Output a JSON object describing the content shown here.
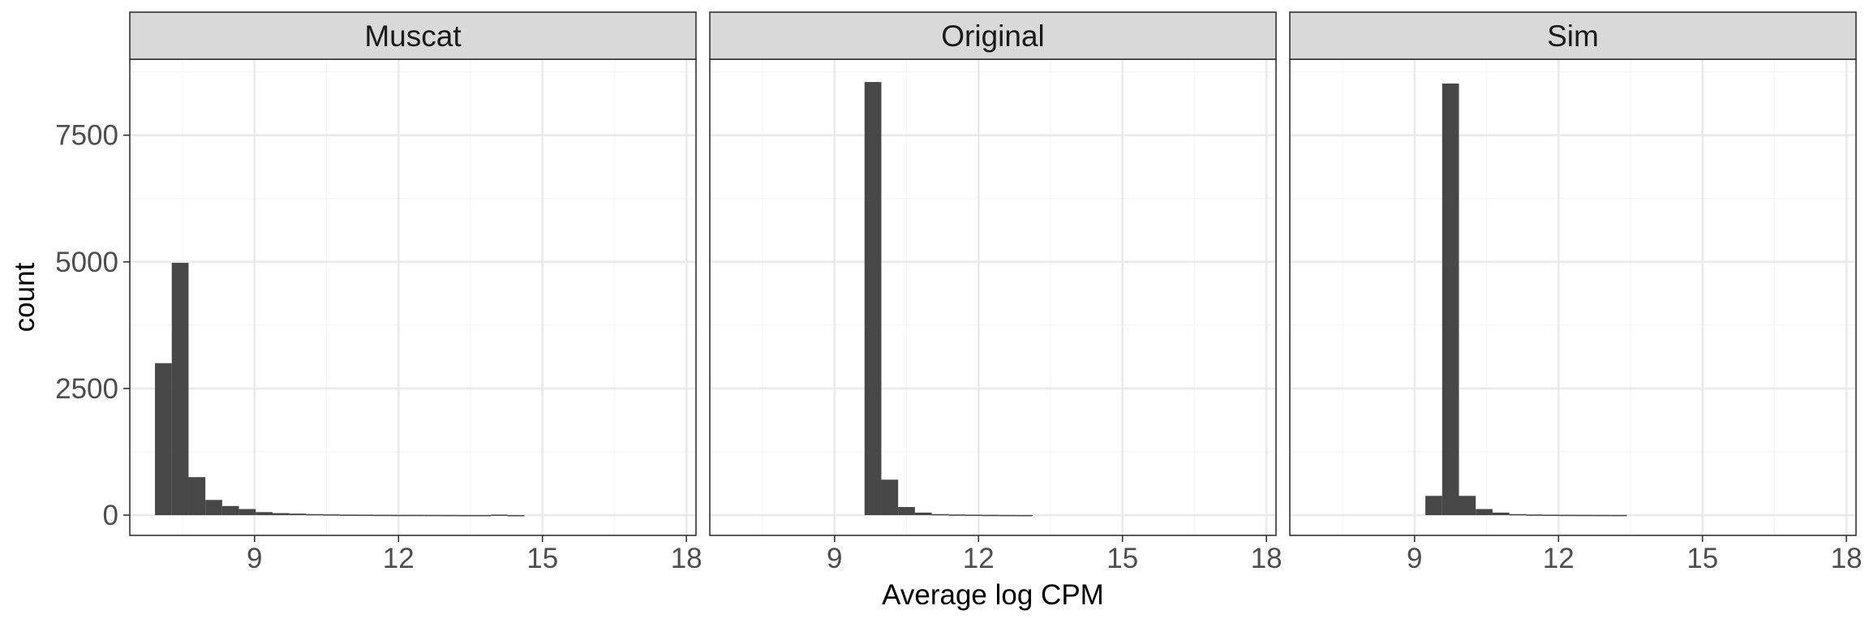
{
  "chart_data": {
    "type": "bar",
    "layout": "facets",
    "xlabel": "Average log CPM",
    "ylabel": "count",
    "xlim": [
      6.4,
      18.2
    ],
    "ylim": [
      -400,
      9000
    ],
    "x_ticks": [
      9,
      12,
      15,
      18
    ],
    "x_tick_labels": [
      "9",
      "12",
      "15",
      "18"
    ],
    "y_ticks": [
      0,
      2500,
      5000,
      7500
    ],
    "y_tick_labels": [
      "0",
      "2500",
      "5000",
      "7500"
    ],
    "grid": true,
    "bin_width": 0.35,
    "facets": [
      {
        "name": "Muscat",
        "bins": [
          {
            "x": 7.1,
            "count": 3000
          },
          {
            "x": 7.45,
            "count": 4980
          },
          {
            "x": 7.8,
            "count": 750
          },
          {
            "x": 8.15,
            "count": 300
          },
          {
            "x": 8.5,
            "count": 180
          },
          {
            "x": 8.85,
            "count": 120
          },
          {
            "x": 9.2,
            "count": 60
          },
          {
            "x": 9.55,
            "count": 40
          },
          {
            "x": 9.9,
            "count": 30
          },
          {
            "x": 10.25,
            "count": 20
          },
          {
            "x": 10.6,
            "count": 15
          },
          {
            "x": 10.95,
            "count": 10
          },
          {
            "x": 11.3,
            "count": 8
          },
          {
            "x": 11.65,
            "count": 6
          },
          {
            "x": 12.0,
            "count": 5
          },
          {
            "x": 12.35,
            "count": 5
          },
          {
            "x": 12.7,
            "count": 4
          },
          {
            "x": 13.05,
            "count": 3
          },
          {
            "x": 13.4,
            "count": 2
          },
          {
            "x": 13.75,
            "count": 2
          },
          {
            "x": 14.1,
            "count": 10
          },
          {
            "x": 14.45,
            "count": 1
          }
        ]
      },
      {
        "name": "Original",
        "bins": [
          {
            "x": 9.8,
            "count": 8550
          },
          {
            "x": 10.15,
            "count": 700
          },
          {
            "x": 10.5,
            "count": 160
          },
          {
            "x": 10.85,
            "count": 50
          },
          {
            "x": 11.2,
            "count": 20
          },
          {
            "x": 11.55,
            "count": 12
          },
          {
            "x": 11.9,
            "count": 8
          },
          {
            "x": 12.25,
            "count": 5
          },
          {
            "x": 12.6,
            "count": 3
          },
          {
            "x": 12.95,
            "count": 2
          }
        ]
      },
      {
        "name": "Sim",
        "bins": [
          {
            "x": 9.4,
            "count": 380
          },
          {
            "x": 9.75,
            "count": 8520
          },
          {
            "x": 10.1,
            "count": 380
          },
          {
            "x": 10.45,
            "count": 120
          },
          {
            "x": 10.8,
            "count": 50
          },
          {
            "x": 11.15,
            "count": 20
          },
          {
            "x": 11.5,
            "count": 12
          },
          {
            "x": 11.85,
            "count": 8
          },
          {
            "x": 12.2,
            "count": 6
          },
          {
            "x": 12.55,
            "count": 5
          },
          {
            "x": 12.9,
            "count": 4
          },
          {
            "x": 13.25,
            "count": 3
          }
        ]
      }
    ]
  },
  "colors": {
    "bar": "#474747",
    "strip_fill": "#d9d9d9",
    "grid_major": "#ebebeb",
    "grid_minor": "#f5f5f5",
    "panel_border": "#333333",
    "tick_text": "#4d4d4d"
  }
}
